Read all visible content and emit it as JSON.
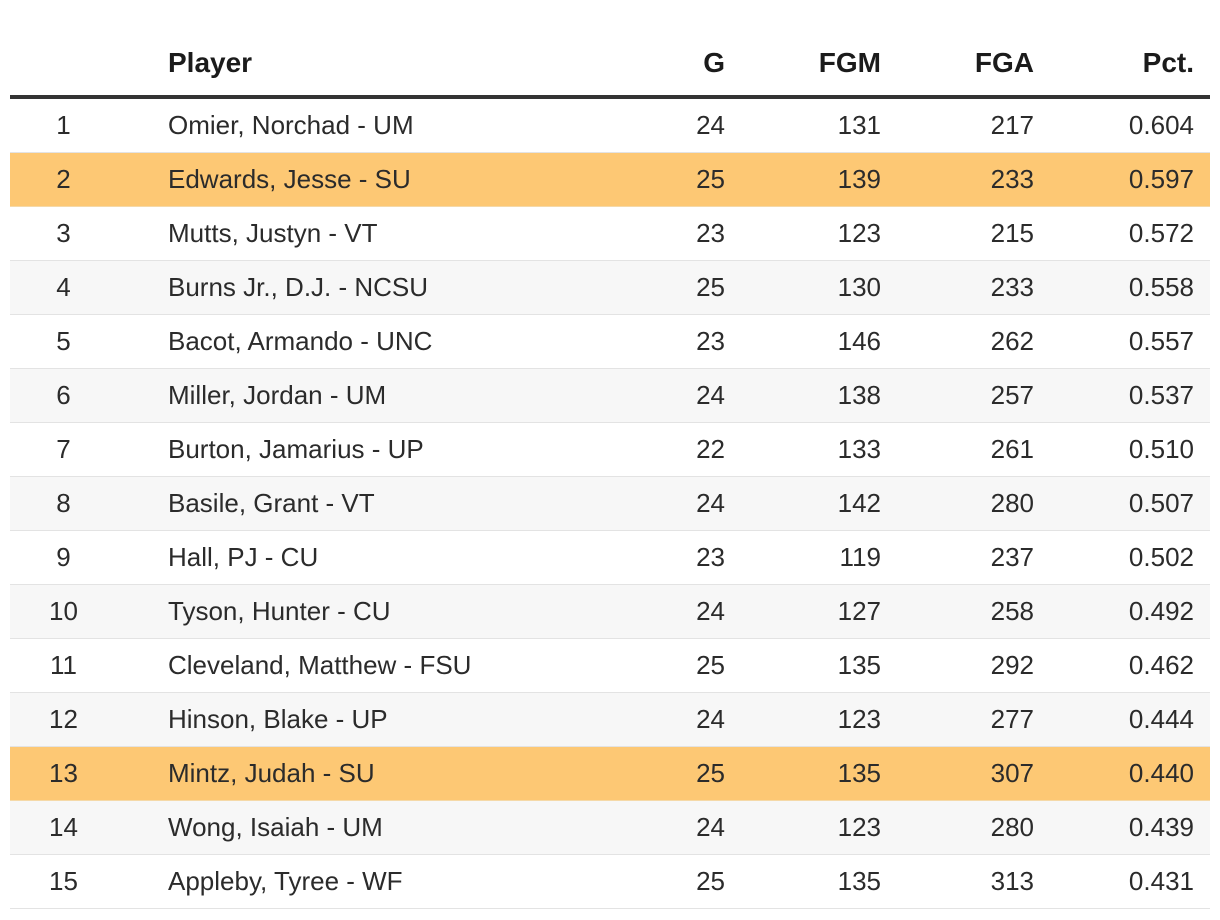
{
  "table": {
    "columns": {
      "rank": "",
      "player": "Player",
      "g": "G",
      "fgm": "FGM",
      "fga": "FGA",
      "pct": "Pct."
    },
    "highlight_color": "#fdc874",
    "rows": [
      {
        "rank": "1",
        "player": "Omier, Norchad - UM",
        "g": "24",
        "fgm": "131",
        "fga": "217",
        "pct": "0.604",
        "highlight": false
      },
      {
        "rank": "2",
        "player": "Edwards, Jesse - SU",
        "g": "25",
        "fgm": "139",
        "fga": "233",
        "pct": "0.597",
        "highlight": true
      },
      {
        "rank": "3",
        "player": "Mutts, Justyn - VT",
        "g": "23",
        "fgm": "123",
        "fga": "215",
        "pct": "0.572",
        "highlight": false
      },
      {
        "rank": "4",
        "player": "Burns Jr., D.J. - NCSU",
        "g": "25",
        "fgm": "130",
        "fga": "233",
        "pct": "0.558",
        "highlight": false
      },
      {
        "rank": "5",
        "player": "Bacot, Armando - UNC",
        "g": "23",
        "fgm": "146",
        "fga": "262",
        "pct": "0.557",
        "highlight": false
      },
      {
        "rank": "6",
        "player": "Miller, Jordan - UM",
        "g": "24",
        "fgm": "138",
        "fga": "257",
        "pct": "0.537",
        "highlight": false
      },
      {
        "rank": "7",
        "player": "Burton, Jamarius - UP",
        "g": "22",
        "fgm": "133",
        "fga": "261",
        "pct": "0.510",
        "highlight": false
      },
      {
        "rank": "8",
        "player": "Basile, Grant - VT",
        "g": "24",
        "fgm": "142",
        "fga": "280",
        "pct": "0.507",
        "highlight": false
      },
      {
        "rank": "9",
        "player": "Hall, PJ - CU",
        "g": "23",
        "fgm": "119",
        "fga": "237",
        "pct": "0.502",
        "highlight": false
      },
      {
        "rank": "10",
        "player": "Tyson, Hunter - CU",
        "g": "24",
        "fgm": "127",
        "fga": "258",
        "pct": "0.492",
        "highlight": false
      },
      {
        "rank": "11",
        "player": "Cleveland, Matthew - FSU",
        "g": "25",
        "fgm": "135",
        "fga": "292",
        "pct": "0.462",
        "highlight": false
      },
      {
        "rank": "12",
        "player": "Hinson, Blake - UP",
        "g": "24",
        "fgm": "123",
        "fga": "277",
        "pct": "0.444",
        "highlight": false
      },
      {
        "rank": "13",
        "player": "Mintz, Judah - SU",
        "g": "25",
        "fgm": "135",
        "fga": "307",
        "pct": "0.440",
        "highlight": true
      },
      {
        "rank": "14",
        "player": "Wong, Isaiah - UM",
        "g": "24",
        "fgm": "123",
        "fga": "280",
        "pct": "0.439",
        "highlight": false
      },
      {
        "rank": "15",
        "player": "Appleby, Tyree - WF",
        "g": "25",
        "fgm": "135",
        "fga": "313",
        "pct": "0.431",
        "highlight": false
      }
    ]
  }
}
